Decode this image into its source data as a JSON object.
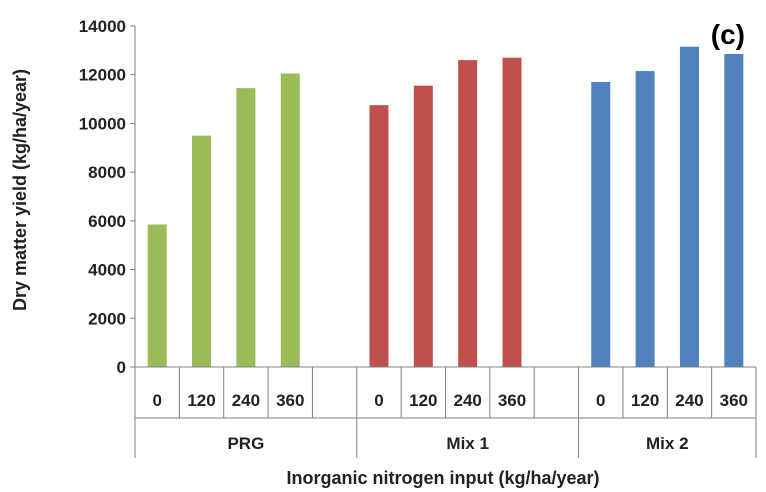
{
  "chart_data": {
    "type": "bar",
    "panel_label": "(c)",
    "ylabel": "Dry matter yield (kg/ha/year)",
    "xlabel": "Inorganic nitrogen input (kg/ha/year)",
    "ylim": [
      0,
      14000
    ],
    "yticks": [
      "0",
      "2000",
      "4000",
      "6000",
      "8000",
      "10000",
      "12000",
      "14000"
    ],
    "grid": false,
    "groups": [
      {
        "name": "PRG",
        "color": "#9BBB59",
        "categories": [
          "0",
          "120",
          "240",
          "360"
        ],
        "values": [
          5850,
          9500,
          11450,
          12050
        ]
      },
      {
        "name": "Mix 1",
        "color": "#C0504D",
        "categories": [
          "0",
          "120",
          "240",
          "360"
        ],
        "values": [
          10750,
          11550,
          12600,
          12700
        ]
      },
      {
        "name": "Mix 2",
        "color": "#4F81BD",
        "categories": [
          "0",
          "120",
          "240",
          "360"
        ],
        "values": [
          11700,
          12150,
          13150,
          12850
        ]
      }
    ]
  }
}
